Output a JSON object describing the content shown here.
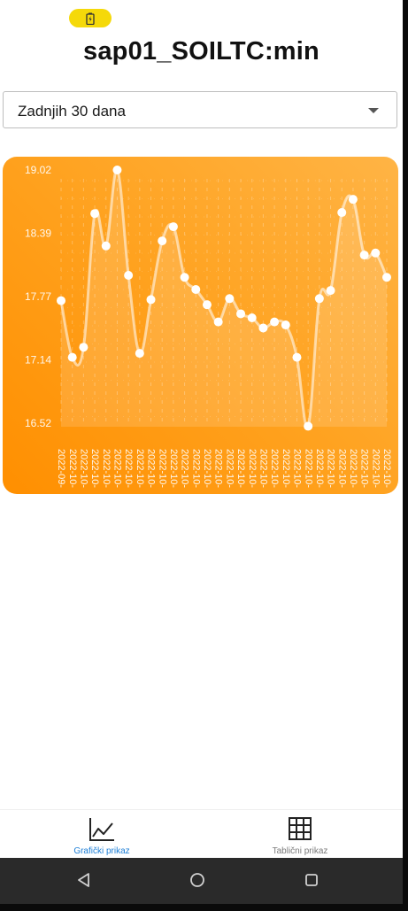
{
  "header": {
    "title": "sap01_SOILTC:min"
  },
  "status_bar": {
    "battery_icon": "battery-icon",
    "pill_color": "#f5d90a"
  },
  "period_select": {
    "value": "Zadnjih 30 dana"
  },
  "colors": {
    "chart_orange": "#ff9800",
    "accent_blue": "#1c7ed6",
    "inactive_gray": "#7a7a7a"
  },
  "chart_data": {
    "type": "line",
    "ylim": [
      16.52,
      19.02
    ],
    "yticks": [
      "19.02",
      "18.39",
      "17.77",
      "17.14",
      "16.52"
    ],
    "x": [
      "2022-09-",
      "2022-10-",
      "2022-10-",
      "2022-10-",
      "2022-10-",
      "2022-10-",
      "2022-10-",
      "2022-10-",
      "2022-10-",
      "2022-10-",
      "2022-10-",
      "2022-10-",
      "2022-10-",
      "2022-10-",
      "2022-10-",
      "2022-10-",
      "2022-10-",
      "2022-10-",
      "2022-10-",
      "2022-10-",
      "2022-10-",
      "2022-10-",
      "2022-10-",
      "2022-10-",
      "2022-10-",
      "2022-10-",
      "2022-10-",
      "2022-10-",
      "2022-10-",
      "2022-10-"
    ],
    "values": [
      17.73,
      17.17,
      17.27,
      18.59,
      18.27,
      19.02,
      17.98,
      17.21,
      17.74,
      18.32,
      18.46,
      17.96,
      17.84,
      17.69,
      17.52,
      17.75,
      17.6,
      17.56,
      17.46,
      17.52,
      17.49,
      17.17,
      16.49,
      17.75,
      17.83,
      18.6,
      18.73,
      18.18,
      18.2,
      17.96
    ],
    "grid": true,
    "legend": "none"
  },
  "bottom_nav": {
    "tabs": [
      {
        "label": "Grafički prikaz",
        "icon": "line-chart-icon",
        "active": true
      },
      {
        "label": "Tablični prikaz",
        "icon": "grid-table-icon",
        "active": false
      }
    ]
  },
  "system_nav": {
    "back_icon": "back-triangle-icon",
    "home_icon": "home-circle-icon",
    "recents_icon": "recents-square-icon"
  }
}
